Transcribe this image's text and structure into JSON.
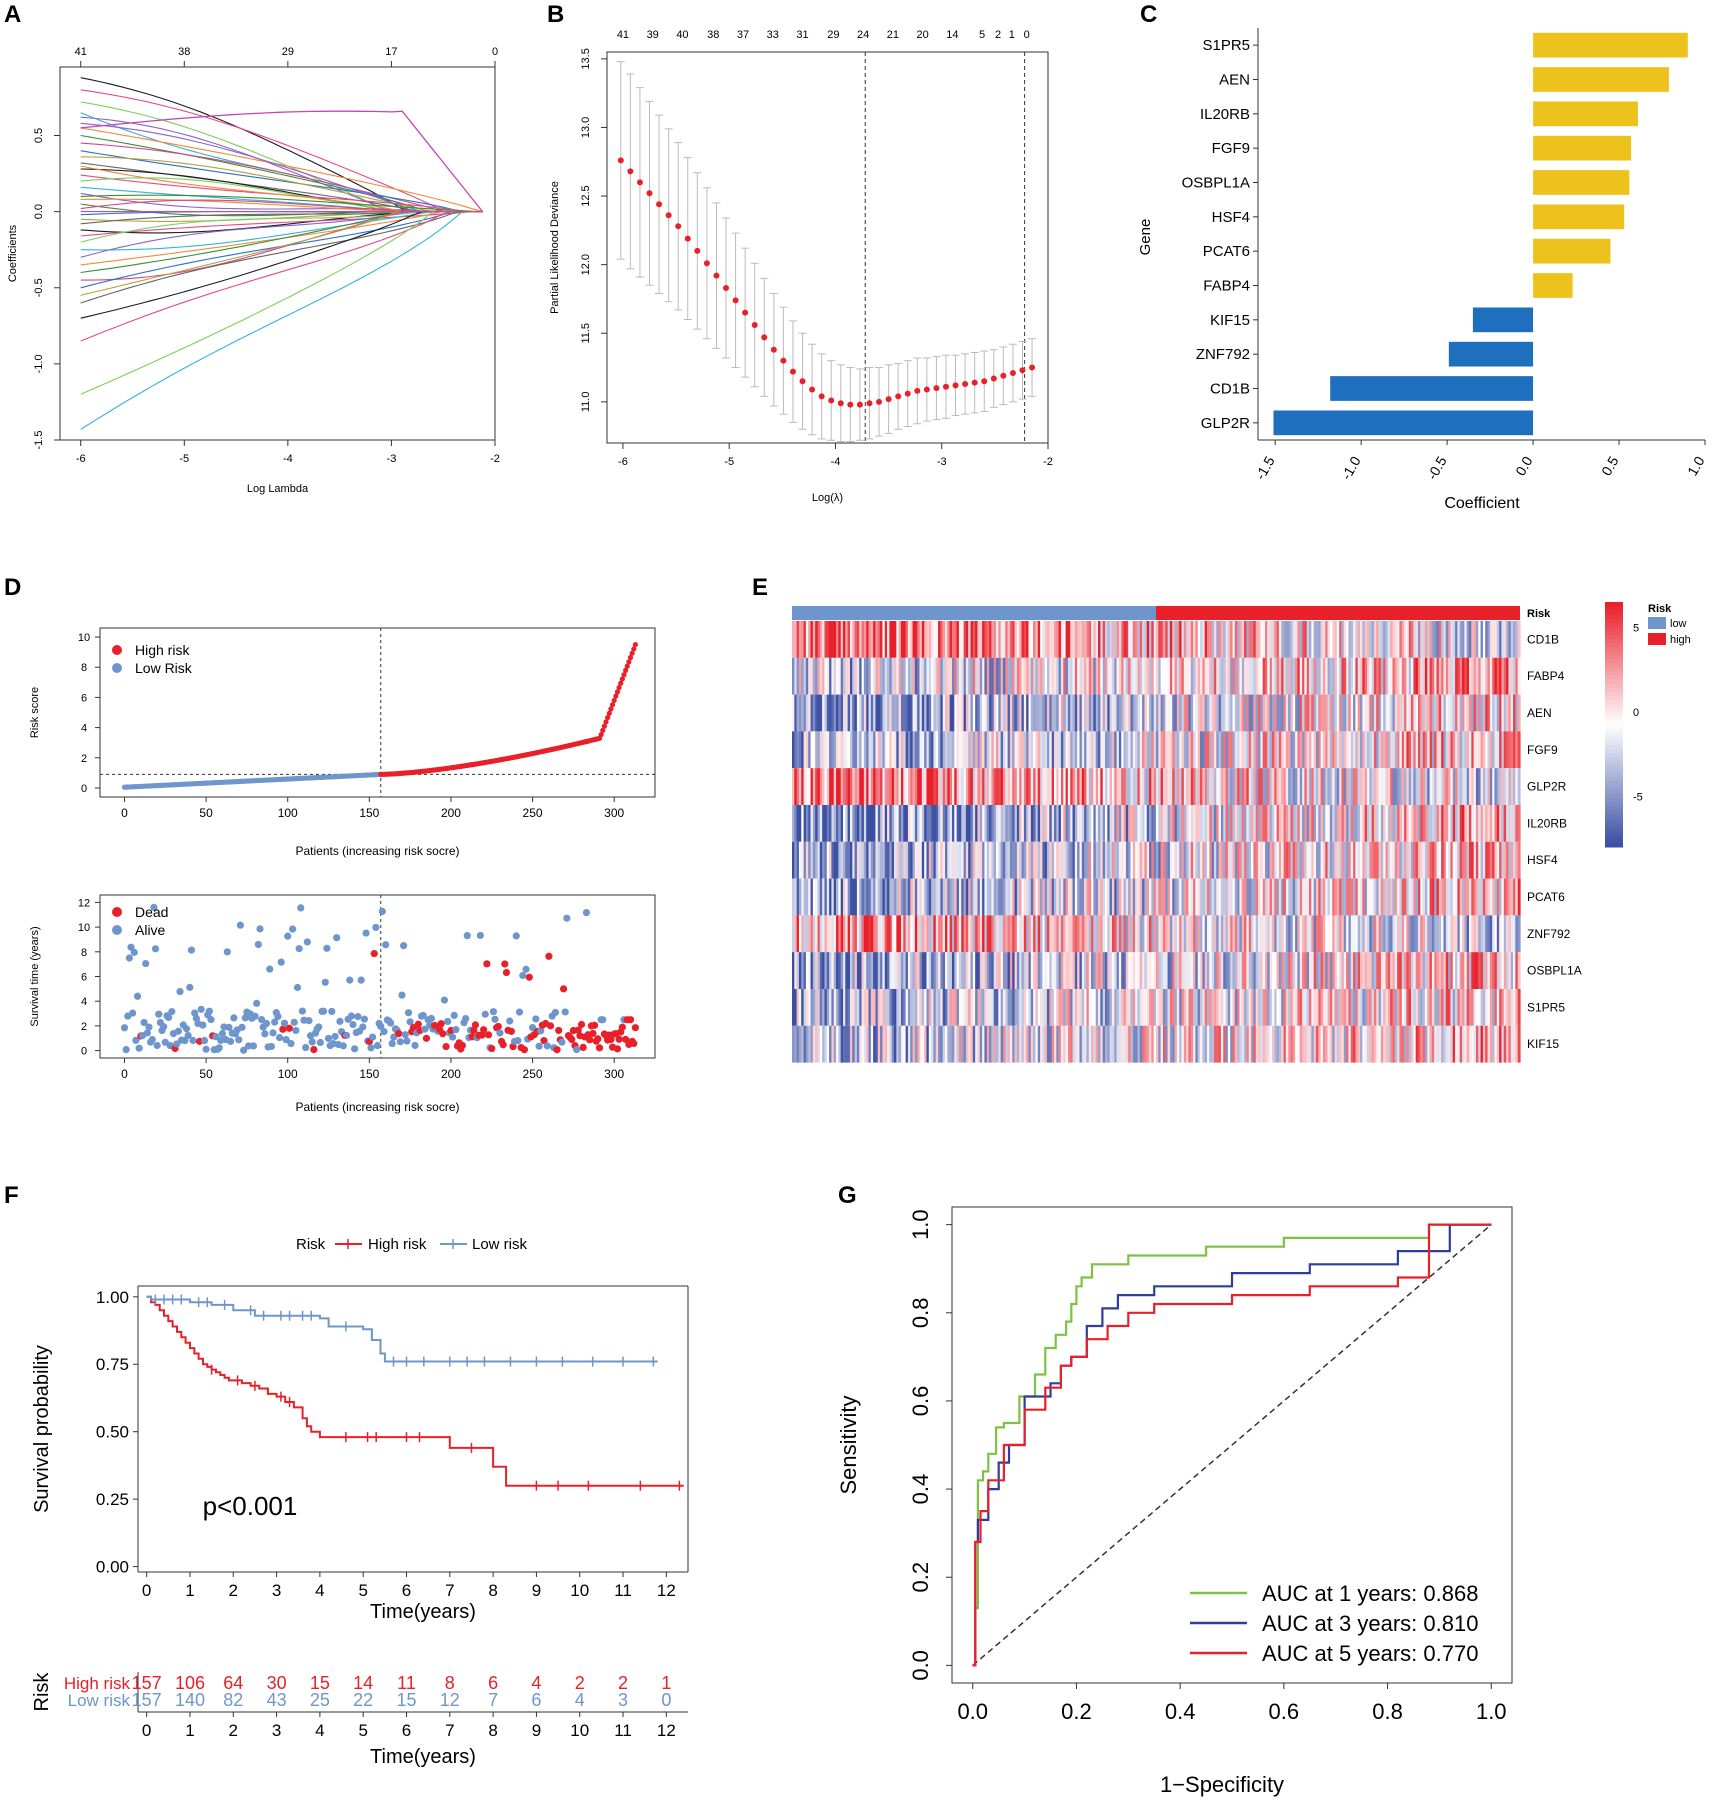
{
  "panel_labels": [
    "A",
    "B",
    "C",
    "D",
    "E",
    "F",
    "G"
  ],
  "colors": {
    "high_red": "#e8202a",
    "low_blue": "#6e96cc",
    "bar_pos": "#eec21d",
    "bar_neg": "#1f6fbf",
    "heat_low": "#3b4fa3",
    "heat_high": "#e8202a",
    "roc_green": "#7dc242",
    "roc_blue": "#2f3d9e",
    "roc_red": "#e8202a",
    "ci_gray": "#bbbbbb"
  },
  "chart_data": [
    {
      "panel": "A",
      "type": "line",
      "title": "",
      "xlabel": "Log Lambda",
      "ylabel": "Coefficients",
      "xlim": [
        -6.2,
        -2.0
      ],
      "ylim": [
        -1.5,
        0.95
      ],
      "xticks": [
        -6,
        -5,
        -4,
        -3,
        -2
      ],
      "yticks": [
        -1.5,
        -1.0,
        -0.5,
        0.0,
        0.5
      ],
      "top_axis": {
        "positions": [
          -6,
          -5,
          -4,
          -3,
          -2
        ],
        "labels": [
          "41",
          "38",
          "29",
          "17",
          "0"
        ]
      },
      "zero_point": -2.12,
      "start_x": -6.0,
      "series_start_coefficients": [
        0.88,
        0.8,
        0.72,
        0.65,
        0.62,
        0.55,
        0.5,
        0.45,
        0.4,
        0.36,
        0.32,
        0.28,
        0.24,
        0.2,
        0.16,
        0.12,
        0.08,
        0.05,
        0.02,
        -0.02,
        -0.05,
        -0.08,
        -0.12,
        -0.16,
        -0.2,
        -0.25,
        -0.3,
        -0.35,
        -0.4,
        -0.45,
        -0.5,
        -0.55,
        -0.6,
        -0.7,
        -0.85,
        -1.2,
        -1.43,
        0.58,
        0.3,
        0.1,
        -0.1
      ],
      "series_peak_coefficient": 0.66
    },
    {
      "panel": "B",
      "type": "scatter",
      "title": "",
      "xlabel": "Log(λ)",
      "ylabel": "Partial Likelihood Deviance",
      "xlim": [
        -6.15,
        -2.0
      ],
      "ylim": [
        10.7,
        13.55
      ],
      "xticks": [
        -6,
        -5,
        -4,
        -3,
        -2
      ],
      "yticks": [
        11.0,
        11.5,
        12.0,
        12.5,
        13.0,
        13.5
      ],
      "top_axis": {
        "positions": [
          -6.0,
          -5.72,
          -5.44,
          -5.15,
          -4.87,
          -4.59,
          -4.31,
          -4.02,
          -3.74,
          -3.46,
          -3.18,
          -2.9,
          -2.62,
          -2.47,
          -2.34,
          -2.2
        ],
        "labels": [
          "41",
          "39",
          "40",
          "38",
          "37",
          "33",
          "31",
          "29",
          "24",
          "21",
          "20",
          "14",
          "5",
          "2",
          "1",
          "0"
        ]
      },
      "vlines": [
        -3.72,
        -2.22
      ],
      "x": [
        -6.02,
        -5.93,
        -5.84,
        -5.75,
        -5.66,
        -5.57,
        -5.48,
        -5.39,
        -5.3,
        -5.21,
        -5.12,
        -5.03,
        -4.94,
        -4.85,
        -4.76,
        -4.67,
        -4.58,
        -4.49,
        -4.4,
        -4.31,
        -4.22,
        -4.13,
        -4.04,
        -3.95,
        -3.86,
        -3.77,
        -3.68,
        -3.59,
        -3.5,
        -3.41,
        -3.32,
        -3.23,
        -3.14,
        -3.05,
        -2.96,
        -2.87,
        -2.78,
        -2.69,
        -2.6,
        -2.51,
        -2.42,
        -2.33,
        -2.24,
        -2.15
      ],
      "y": [
        12.76,
        12.68,
        12.6,
        12.52,
        12.44,
        12.36,
        12.28,
        12.19,
        12.1,
        12.01,
        11.92,
        11.83,
        11.74,
        11.65,
        11.56,
        11.47,
        11.38,
        11.3,
        11.22,
        11.15,
        11.09,
        11.04,
        11.01,
        10.99,
        10.98,
        10.98,
        10.99,
        11.0,
        11.02,
        11.04,
        11.06,
        11.08,
        11.09,
        11.1,
        11.11,
        11.12,
        11.13,
        11.14,
        11.15,
        11.17,
        11.19,
        11.21,
        11.23,
        11.25
      ],
      "err": [
        0.72,
        0.71,
        0.69,
        0.67,
        0.65,
        0.63,
        0.61,
        0.59,
        0.57,
        0.55,
        0.53,
        0.51,
        0.49,
        0.47,
        0.45,
        0.43,
        0.41,
        0.39,
        0.37,
        0.35,
        0.33,
        0.31,
        0.29,
        0.28,
        0.27,
        0.26,
        0.26,
        0.25,
        0.25,
        0.24,
        0.24,
        0.24,
        0.23,
        0.23,
        0.23,
        0.22,
        0.22,
        0.22,
        0.22,
        0.21,
        0.21,
        0.21,
        0.21,
        0.21
      ]
    },
    {
      "panel": "C",
      "type": "bar",
      "orientation": "horizontal",
      "title": "",
      "xlabel": "Coefficient",
      "ylabel": "Gene",
      "xlim": [
        -1.6,
        1.0
      ],
      "xticks": [
        -1.5,
        -1.0,
        -0.5,
        0.0,
        0.5,
        1.0
      ],
      "xtick_labels": [
        "-1.5",
        "-1.0",
        "-0.5",
        "0.0",
        "0.5",
        "1.0"
      ],
      "categories": [
        "S1PR5",
        "AEN",
        "IL20RB",
        "FGF9",
        "OSBPL1A",
        "HSF4",
        "PCAT6",
        "FABP4",
        "KIF15",
        "ZNF792",
        "CD1B",
        "GLP2R"
      ],
      "values": [
        0.9,
        0.79,
        0.61,
        0.57,
        0.56,
        0.53,
        0.45,
        0.23,
        -0.35,
        -0.49,
        -1.18,
        -1.51
      ]
    },
    {
      "panel": "D1",
      "type": "scatter",
      "title": "",
      "xlabel": "Patients (increasing risk socre)",
      "ylabel": "Risk score",
      "xlim": [
        -15,
        325
      ],
      "ylim": [
        -0.6,
        10.6
      ],
      "xticks": [
        0,
        50,
        100,
        150,
        200,
        250,
        300
      ],
      "yticks": [
        0,
        2,
        4,
        6,
        8,
        10
      ],
      "cutoff_patient": 157,
      "cutoff_score": 0.9,
      "n_patients": 314,
      "legend": [
        "High risk",
        "Low Risk"
      ]
    },
    {
      "panel": "D2",
      "type": "scatter",
      "title": "",
      "xlabel": "Patients (increasing risk socre)",
      "ylabel": "Survival time (years)",
      "xlim": [
        -15,
        325
      ],
      "ylim": [
        -0.6,
        12.6
      ],
      "xticks": [
        0,
        50,
        100,
        150,
        200,
        250,
        300
      ],
      "yticks": [
        0,
        2,
        4,
        6,
        8,
        10,
        12
      ],
      "cutoff_patient": 157,
      "legend": [
        "Dead",
        "Alive"
      ]
    },
    {
      "panel": "E",
      "type": "heatmap",
      "title": "",
      "rows": [
        "CD1B",
        "FABP4",
        "AEN",
        "FGF9",
        "GLP2R",
        "IL20RB",
        "HSF4",
        "PCAT6",
        "ZNF792",
        "OSBPL1A",
        "S1PR5",
        "KIF15"
      ],
      "annotation_label": "Risk",
      "annotation_groups": [
        "low",
        "high"
      ],
      "legend_title": "Risk",
      "color_scale_ticks": [
        5,
        0,
        -5
      ],
      "n_columns": 314,
      "low_columns": 157
    },
    {
      "panel": "F",
      "type": "line",
      "subtype": "kaplan-meier",
      "title": "",
      "legend_title": "Risk",
      "xlabel": "Time(years)",
      "ylabel": "Survival probability",
      "xlim": [
        -0.2,
        12.5
      ],
      "ylim": [
        -0.02,
        1.04
      ],
      "xticks": [
        0,
        1,
        2,
        3,
        4,
        5,
        6,
        7,
        8,
        9,
        10,
        11,
        12
      ],
      "yticks": [
        0.0,
        0.25,
        0.5,
        0.75,
        1.0
      ],
      "ytick_labels": [
        "0.00",
        "0.25",
        "0.50",
        "0.75",
        "1.00"
      ],
      "annotation": "p<0.001",
      "series": [
        {
          "name": "High risk",
          "x": [
            0,
            0.1,
            0.2,
            0.3,
            0.4,
            0.5,
            0.6,
            0.7,
            0.8,
            0.9,
            1.0,
            1.1,
            1.2,
            1.3,
            1.4,
            1.5,
            1.6,
            1.7,
            1.8,
            1.9,
            2.0,
            2.2,
            2.4,
            2.6,
            2.8,
            3.0,
            3.2,
            3.4,
            3.6,
            3.7,
            3.8,
            4.0,
            4.5,
            5.0,
            5.5,
            6.5,
            6.9,
            7.0,
            7.8,
            8.0,
            8.3,
            12.4
          ],
          "y": [
            1.0,
            0.98,
            0.97,
            0.95,
            0.93,
            0.91,
            0.89,
            0.87,
            0.85,
            0.83,
            0.81,
            0.79,
            0.77,
            0.75,
            0.74,
            0.73,
            0.72,
            0.71,
            0.7,
            0.69,
            0.69,
            0.68,
            0.67,
            0.66,
            0.64,
            0.63,
            0.61,
            0.59,
            0.55,
            0.52,
            0.5,
            0.48,
            0.48,
            0.48,
            0.48,
            0.48,
            0.48,
            0.44,
            0.44,
            0.37,
            0.3,
            0.3
          ],
          "censor_x": [
            1.5,
            2.1,
            2.5,
            3.1,
            3.3,
            4.6,
            5.1,
            5.3,
            6.0,
            6.3,
            7.5,
            9.0,
            9.5,
            10.2,
            11.4,
            12.3
          ]
        },
        {
          "name": "Low risk",
          "x": [
            0,
            0.1,
            0.5,
            1.0,
            1.5,
            2.0,
            2.2,
            2.5,
            3.0,
            3.5,
            4.0,
            4.2,
            4.5,
            5.0,
            5.2,
            5.4,
            5.5,
            11.8
          ],
          "y": [
            1.0,
            0.99,
            0.99,
            0.98,
            0.97,
            0.95,
            0.95,
            0.93,
            0.93,
            0.93,
            0.92,
            0.89,
            0.89,
            0.88,
            0.84,
            0.79,
            0.76,
            0.76
          ],
          "censor_x": [
            0.2,
            0.4,
            0.6,
            0.8,
            1.2,
            1.4,
            1.8,
            2.4,
            2.7,
            3.1,
            3.3,
            3.6,
            3.8,
            4.6,
            5.7,
            6.0,
            6.4,
            7.0,
            7.4,
            7.8,
            8.4,
            9.0,
            9.6,
            10.3,
            11.0,
            11.7
          ]
        }
      ]
    },
    {
      "panel": "F-table",
      "type": "table",
      "title": "Risk",
      "xlabel": "Time(years)",
      "columns": [
        0,
        1,
        2,
        3,
        4,
        5,
        6,
        7,
        8,
        9,
        10,
        11,
        12
      ],
      "rows": [
        {
          "name": "High risk",
          "values": [
            157,
            106,
            64,
            30,
            15,
            14,
            11,
            8,
            6,
            4,
            2,
            2,
            1
          ]
        },
        {
          "name": "Low risk",
          "values": [
            157,
            140,
            82,
            43,
            25,
            22,
            15,
            12,
            7,
            6,
            4,
            3,
            0
          ]
        }
      ]
    },
    {
      "panel": "G",
      "type": "line",
      "subtype": "roc",
      "title": "",
      "xlabel": "1−Specificity",
      "ylabel": "Sensitivity",
      "xlim": [
        -0.04,
        1.04
      ],
      "ylim": [
        -0.04,
        1.04
      ],
      "xticks": [
        0.0,
        0.2,
        0.4,
        0.6,
        0.8,
        1.0
      ],
      "yticks": [
        0.0,
        0.2,
        0.4,
        0.6,
        0.8,
        1.0
      ],
      "tick_labels": [
        "0.0",
        "0.2",
        "0.4",
        "0.6",
        "0.8",
        "1.0"
      ],
      "series": [
        {
          "name": "AUC at 1 years: 0.868",
          "x": [
            0,
            0.005,
            0.005,
            0.01,
            0.01,
            0.02,
            0.02,
            0.03,
            0.03,
            0.045,
            0.045,
            0.06,
            0.06,
            0.09,
            0.09,
            0.12,
            0.12,
            0.14,
            0.14,
            0.16,
            0.16,
            0.18,
            0.18,
            0.19,
            0.19,
            0.2,
            0.2,
            0.21,
            0.21,
            0.23,
            0.23,
            0.3,
            0.3,
            0.45,
            0.45,
            0.6,
            0.6,
            0.88,
            0.88,
            1.0
          ],
          "y": [
            0,
            0,
            0.13,
            0.13,
            0.42,
            0.42,
            0.44,
            0.44,
            0.48,
            0.48,
            0.54,
            0.54,
            0.55,
            0.55,
            0.61,
            0.61,
            0.66,
            0.66,
            0.72,
            0.72,
            0.75,
            0.75,
            0.78,
            0.78,
            0.82,
            0.82,
            0.86,
            0.86,
            0.88,
            0.88,
            0.91,
            0.91,
            0.93,
            0.93,
            0.95,
            0.95,
            0.97,
            0.97,
            1.0,
            1.0
          ]
        },
        {
          "name": "AUC at 3 years: 0.810",
          "x": [
            0,
            0.005,
            0.005,
            0.01,
            0.01,
            0.03,
            0.03,
            0.05,
            0.05,
            0.07,
            0.07,
            0.1,
            0.1,
            0.15,
            0.15,
            0.17,
            0.17,
            0.19,
            0.19,
            0.22,
            0.22,
            0.25,
            0.25,
            0.28,
            0.28,
            0.35,
            0.35,
            0.5,
            0.5,
            0.65,
            0.65,
            0.82,
            0.82,
            0.92,
            0.92,
            1.0
          ],
          "y": [
            0,
            0,
            0.28,
            0.28,
            0.33,
            0.33,
            0.4,
            0.4,
            0.46,
            0.46,
            0.5,
            0.5,
            0.61,
            0.61,
            0.64,
            0.64,
            0.68,
            0.68,
            0.7,
            0.7,
            0.77,
            0.77,
            0.81,
            0.81,
            0.84,
            0.84,
            0.86,
            0.86,
            0.89,
            0.89,
            0.91,
            0.91,
            0.94,
            0.94,
            1.0,
            1.0
          ]
        },
        {
          "name": "AUC at 5 years: 0.770",
          "x": [
            0,
            0.005,
            0.005,
            0.015,
            0.015,
            0.03,
            0.03,
            0.06,
            0.06,
            0.1,
            0.1,
            0.14,
            0.14,
            0.17,
            0.17,
            0.19,
            0.19,
            0.22,
            0.22,
            0.26,
            0.26,
            0.3,
            0.3,
            0.35,
            0.35,
            0.5,
            0.5,
            0.65,
            0.65,
            0.82,
            0.82,
            0.88,
            0.88,
            1.0
          ],
          "y": [
            0,
            0,
            0.28,
            0.28,
            0.35,
            0.35,
            0.42,
            0.42,
            0.5,
            0.5,
            0.58,
            0.58,
            0.63,
            0.63,
            0.68,
            0.68,
            0.7,
            0.7,
            0.74,
            0.74,
            0.77,
            0.77,
            0.8,
            0.8,
            0.82,
            0.82,
            0.84,
            0.84,
            0.86,
            0.86,
            0.88,
            0.88,
            1.0,
            1.0
          ]
        }
      ]
    }
  ]
}
